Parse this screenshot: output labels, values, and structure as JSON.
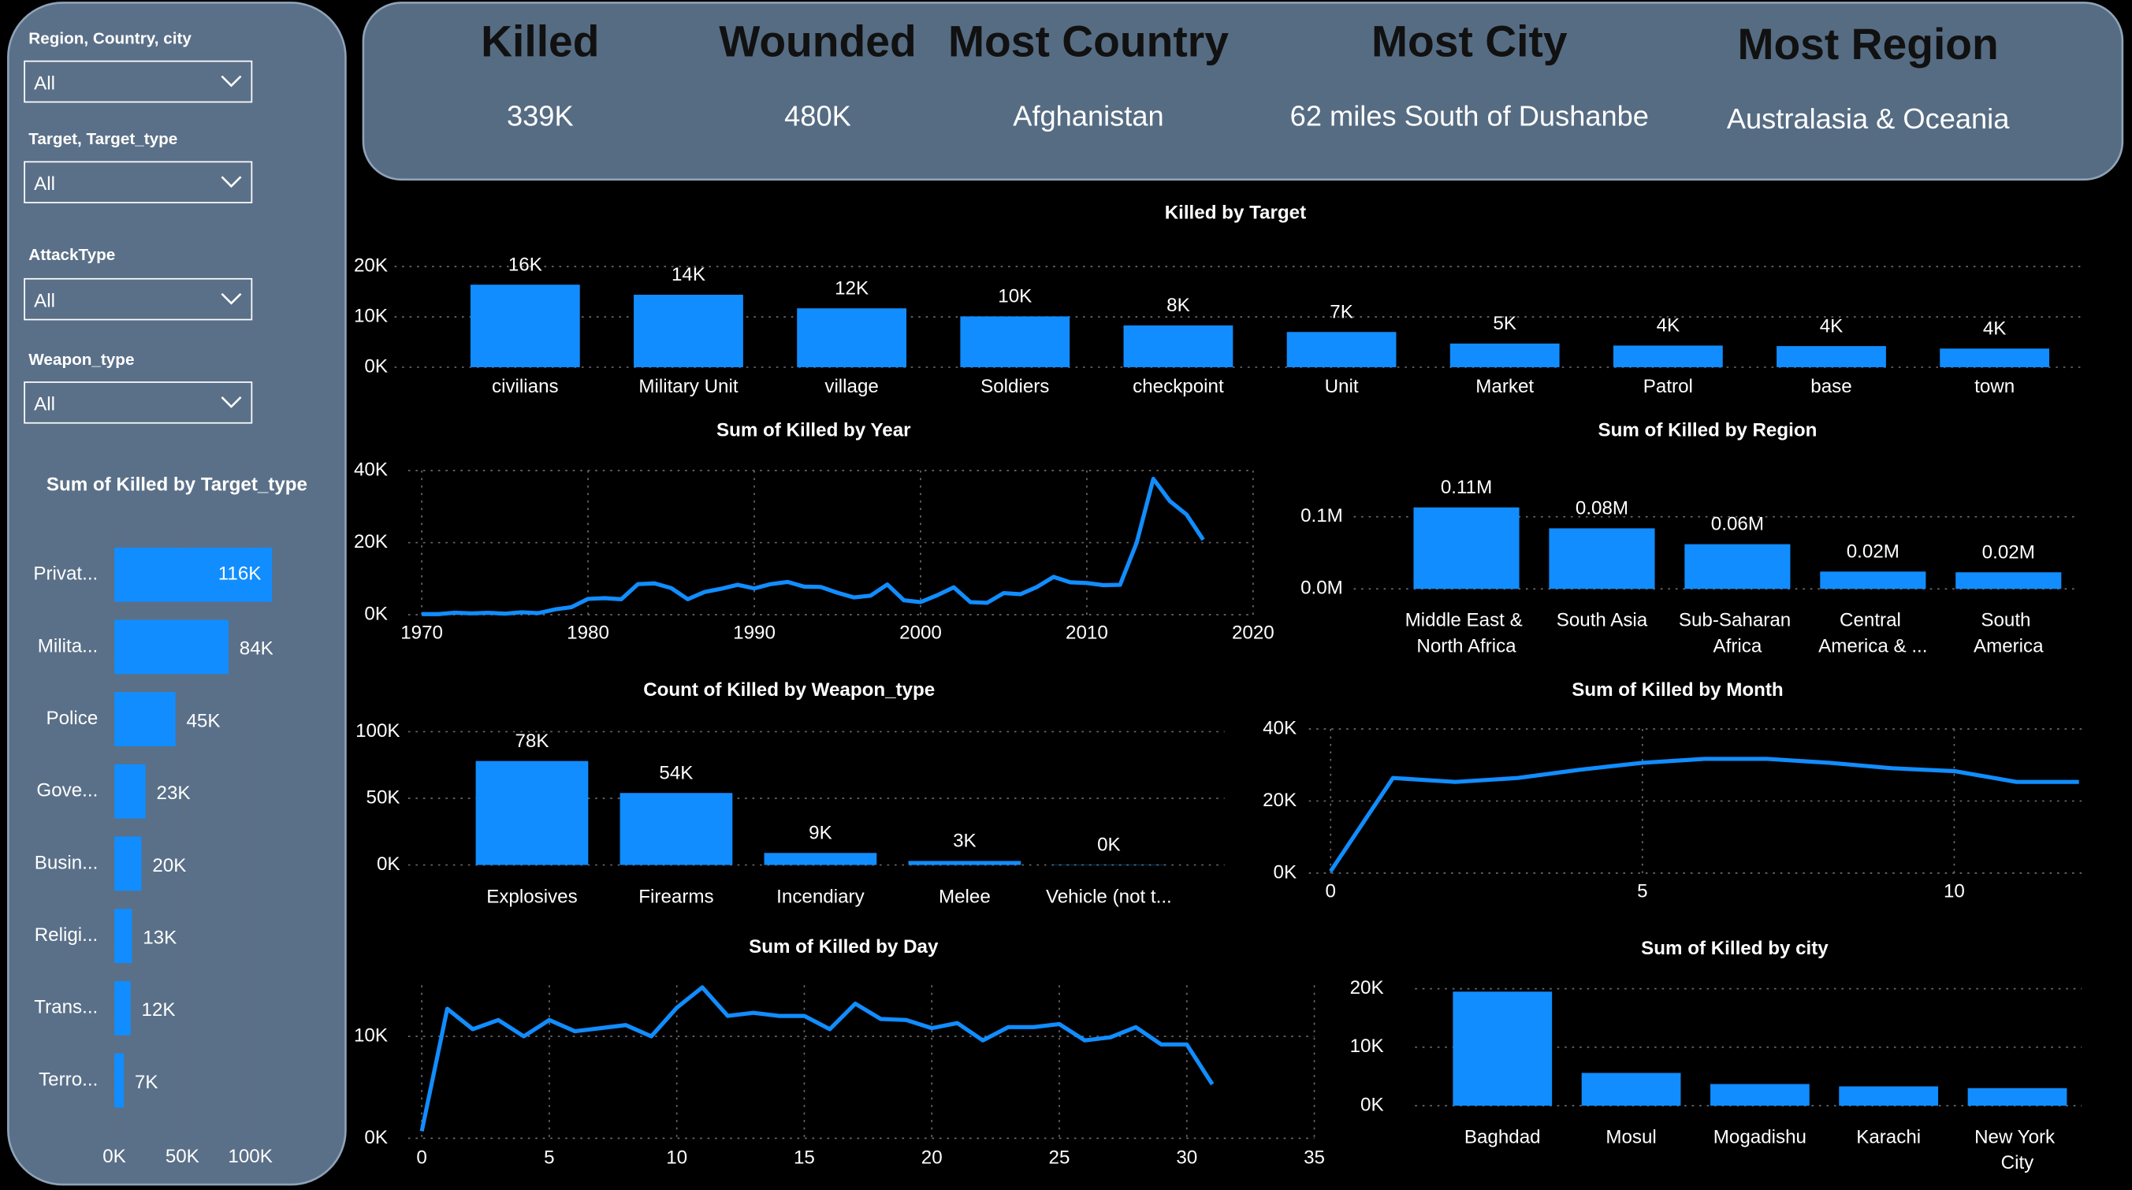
{
  "filters": [
    {
      "label": "Region, Country, city",
      "value": "All"
    },
    {
      "label": "Target, Target_type",
      "value": "All"
    },
    {
      "label": "AttackType",
      "value": "All"
    },
    {
      "label": "Weapon_type",
      "value": "All"
    }
  ],
  "cards": [
    {
      "title": "Killed",
      "value": "339K"
    },
    {
      "title": "Wounded",
      "value": "480K"
    },
    {
      "title": "Most Country",
      "value": "Afghanistan"
    },
    {
      "title": "Most City",
      "value": "62 miles South of Dushanbe"
    },
    {
      "title": "Most Region",
      "value": "Australasia & Oceania"
    }
  ],
  "chart_data": [
    {
      "type": "bar",
      "title": "Killed by Target",
      "categories": [
        "civilians",
        "Military Unit",
        "village",
        "Soldiers",
        "checkpoint",
        "Unit",
        "Market",
        "Patrol",
        "base",
        "town"
      ],
      "values": [
        16400,
        14400,
        11700,
        10100,
        8300,
        7000,
        4700,
        4300,
        4200,
        3700
      ],
      "value_labels": [
        "16K",
        "14K",
        "12K",
        "10K",
        "8K",
        "7K",
        "5K",
        "4K",
        "4K",
        "4K"
      ],
      "color": "#118dff",
      "ylim": [
        0,
        20000
      ],
      "yticks": [
        {
          "value": 0,
          "label": "0K"
        },
        {
          "value": 10000,
          "label": "10K"
        },
        {
          "value": 20000,
          "label": "20K"
        }
      ],
      "grid": true
    },
    {
      "type": "line",
      "title": "Sum of Killed by Year",
      "x": [
        1970,
        1971,
        1972,
        1973,
        1974,
        1975,
        1976,
        1977,
        1978,
        1979,
        1980,
        1981,
        1982,
        1983,
        1984,
        1985,
        1986,
        1987,
        1988,
        1989,
        1990,
        1991,
        1992,
        1993,
        1994,
        1995,
        1996,
        1997,
        1998,
        1999,
        2000,
        2001,
        2002,
        2003,
        2004,
        2005,
        2006,
        2007,
        2008,
        2009,
        2010,
        2011,
        2012,
        2013,
        2014,
        2015,
        2016,
        2017
      ],
      "values": [
        170,
        170,
        570,
        370,
        540,
        290,
        670,
        450,
        1460,
        2100,
        4400,
        4600,
        4300,
        8500,
        8700,
        7400,
        4300,
        6300,
        7200,
        8300,
        7300,
        8500,
        9100,
        7800,
        7700,
        6100,
        4800,
        5300,
        8400,
        4000,
        3500,
        5400,
        7600,
        3500,
        3300,
        6000,
        5700,
        7700,
        10500,
        9000,
        8800,
        8200,
        8300,
        20000,
        37700,
        31500,
        27800,
        20800
      ],
      "color": "#118dff",
      "xlim": [
        1970,
        2020
      ],
      "xticks": [
        1970,
        1980,
        1990,
        2000,
        2010,
        2020
      ],
      "ylim": [
        0,
        40000
      ],
      "yticks": [
        {
          "value": 0,
          "label": "0K"
        },
        {
          "value": 20000,
          "label": "20K"
        },
        {
          "value": 40000,
          "label": "40K"
        }
      ],
      "grid": true
    },
    {
      "type": "bar",
      "title": "Sum of Killed by Region",
      "categories": [
        "Middle East & North Africa",
        "South Asia",
        "Sub-Saharan Africa",
        "Central America & ...",
        "South America"
      ],
      "values": [
        113000,
        84000,
        62000,
        24000,
        23000
      ],
      "value_labels": [
        "0.11M",
        "0.08M",
        "0.06M",
        "0.02M",
        "0.02M"
      ],
      "color": "#118dff",
      "ylim": [
        0,
        120000
      ],
      "yticks": [
        {
          "value": 0,
          "label": "0.0M"
        },
        {
          "value": 100000,
          "label": "0.1M"
        }
      ],
      "grid": true,
      "wrap": true
    },
    {
      "type": "bar",
      "title": "Count of Killed by Weapon_type",
      "categories": [
        "Explosives",
        "Firearms",
        "Incendiary",
        "Melee",
        "Vehicle (not t..."
      ],
      "values": [
        78000,
        54000,
        9000,
        3000,
        200
      ],
      "value_labels": [
        "78K",
        "54K",
        "9K",
        "3K",
        "0K"
      ],
      "color": "#118dff",
      "ylim": [
        0,
        100000
      ],
      "yticks": [
        {
          "value": 0,
          "label": "0K"
        },
        {
          "value": 50000,
          "label": "50K"
        },
        {
          "value": 100000,
          "label": "100K"
        }
      ],
      "grid": true
    },
    {
      "type": "line",
      "title": "Sum of Killed by Month",
      "x": [
        0,
        1,
        2,
        3,
        4,
        5,
        6,
        7,
        8,
        9,
        10,
        11,
        12
      ],
      "values": [
        500,
        26400,
        25300,
        26400,
        28700,
        30600,
        31700,
        31700,
        30600,
        29100,
        28300,
        25300,
        25300
      ],
      "color": "#118dff",
      "xlim": [
        0,
        12
      ],
      "xticks": [
        0,
        5,
        10
      ],
      "ylim": [
        0,
        40000
      ],
      "yticks": [
        {
          "value": 0,
          "label": "0K"
        },
        {
          "value": 20000,
          "label": "20K"
        },
        {
          "value": 40000,
          "label": "40K"
        }
      ],
      "grid": true
    },
    {
      "type": "line",
      "title": "Sum of Killed by Day",
      "x": [
        0,
        1,
        2,
        3,
        4,
        5,
        6,
        7,
        8,
        9,
        10,
        11,
        12,
        13,
        14,
        15,
        16,
        17,
        18,
        19,
        20,
        21,
        22,
        23,
        24,
        25,
        26,
        27,
        28,
        29,
        30,
        31
      ],
      "values": [
        700,
        12700,
        10700,
        11600,
        10000,
        11600,
        10500,
        10800,
        11100,
        10000,
        12800,
        14800,
        12000,
        12300,
        12000,
        12000,
        10700,
        13200,
        11700,
        11600,
        10800,
        11300,
        9600,
        10900,
        10900,
        11200,
        9600,
        9900,
        10900,
        9200,
        9200,
        5300
      ],
      "color": "#118dff",
      "xlim": [
        0,
        35
      ],
      "xticks": [
        0,
        5,
        10,
        15,
        20,
        25,
        30,
        35
      ],
      "ylim": [
        0,
        15000
      ],
      "yticks": [
        {
          "value": 0,
          "label": "0K"
        },
        {
          "value": 10000,
          "label": "10K"
        }
      ],
      "grid": true
    },
    {
      "type": "bar",
      "title": "Sum of Killed by city",
      "categories": [
        "Baghdad",
        "Mosul",
        "Mogadishu",
        "Karachi",
        "New York City"
      ],
      "values": [
        19500,
        5600,
        3700,
        3300,
        3000
      ],
      "color": "#118dff",
      "ylim": [
        0,
        20000
      ],
      "yticks": [
        {
          "value": 0,
          "label": "0K"
        },
        {
          "value": 10000,
          "label": "10K"
        },
        {
          "value": 20000,
          "label": "20K"
        }
      ],
      "grid": true,
      "wrap": true
    },
    {
      "type": "barh",
      "title": "Sum of Killed by Target_type",
      "categories": [
        "Privat...",
        "Milita...",
        "Police",
        "Gove...",
        "Busin...",
        "Religi...",
        "Trans...",
        "Terro..."
      ],
      "values": [
        116000,
        84000,
        45000,
        23000,
        20000,
        13000,
        12000,
        7000
      ],
      "value_labels": [
        "116K",
        "84K",
        "45K",
        "23K",
        "20K",
        "13K",
        "12K",
        "7K"
      ],
      "color": "#118dff",
      "xlim": [
        0,
        120000
      ],
      "xticks": [
        {
          "value": 0,
          "label": "0K"
        },
        {
          "value": 50000,
          "label": "50K"
        },
        {
          "value": 100000,
          "label": "100K"
        }
      ],
      "grid": true
    }
  ]
}
